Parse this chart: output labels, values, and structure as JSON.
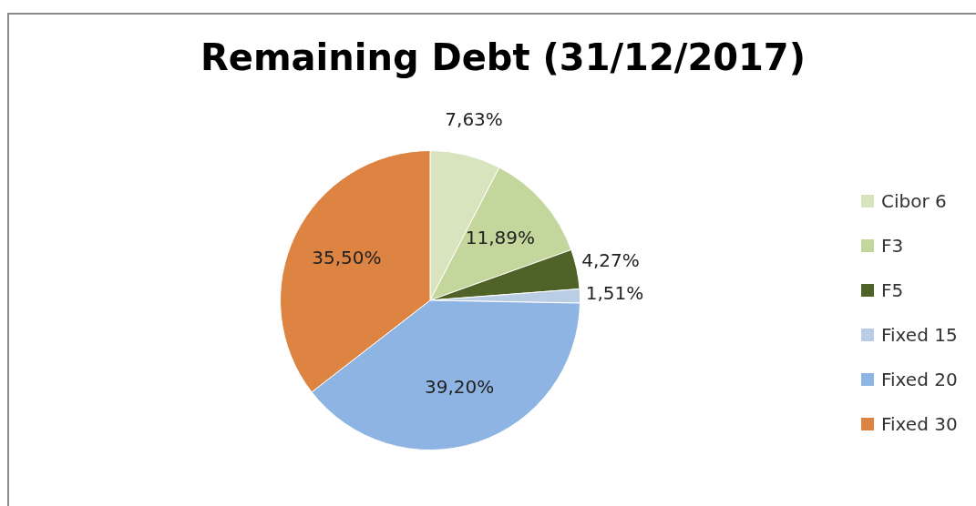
{
  "chart_data": {
    "type": "pie",
    "title": "Remaining Debt (31/12/2017)",
    "categories": [
      "Cibor 6",
      "F3",
      "F5",
      "Fixed 15",
      "Fixed 20",
      "Fixed 30"
    ],
    "values": [
      7.63,
      11.89,
      4.27,
      1.51,
      39.2,
      35.5
    ],
    "colors": [
      "#d7e4bd",
      "#c3d69b",
      "#4f6228",
      "#b9cde5",
      "#8eb4e3",
      "#dd8442"
    ],
    "value_labels": [
      "7,63%",
      "11,89%",
      "4,27%",
      "1,51%",
      "39,20%",
      "35,50%"
    ],
    "legend": "right"
  }
}
